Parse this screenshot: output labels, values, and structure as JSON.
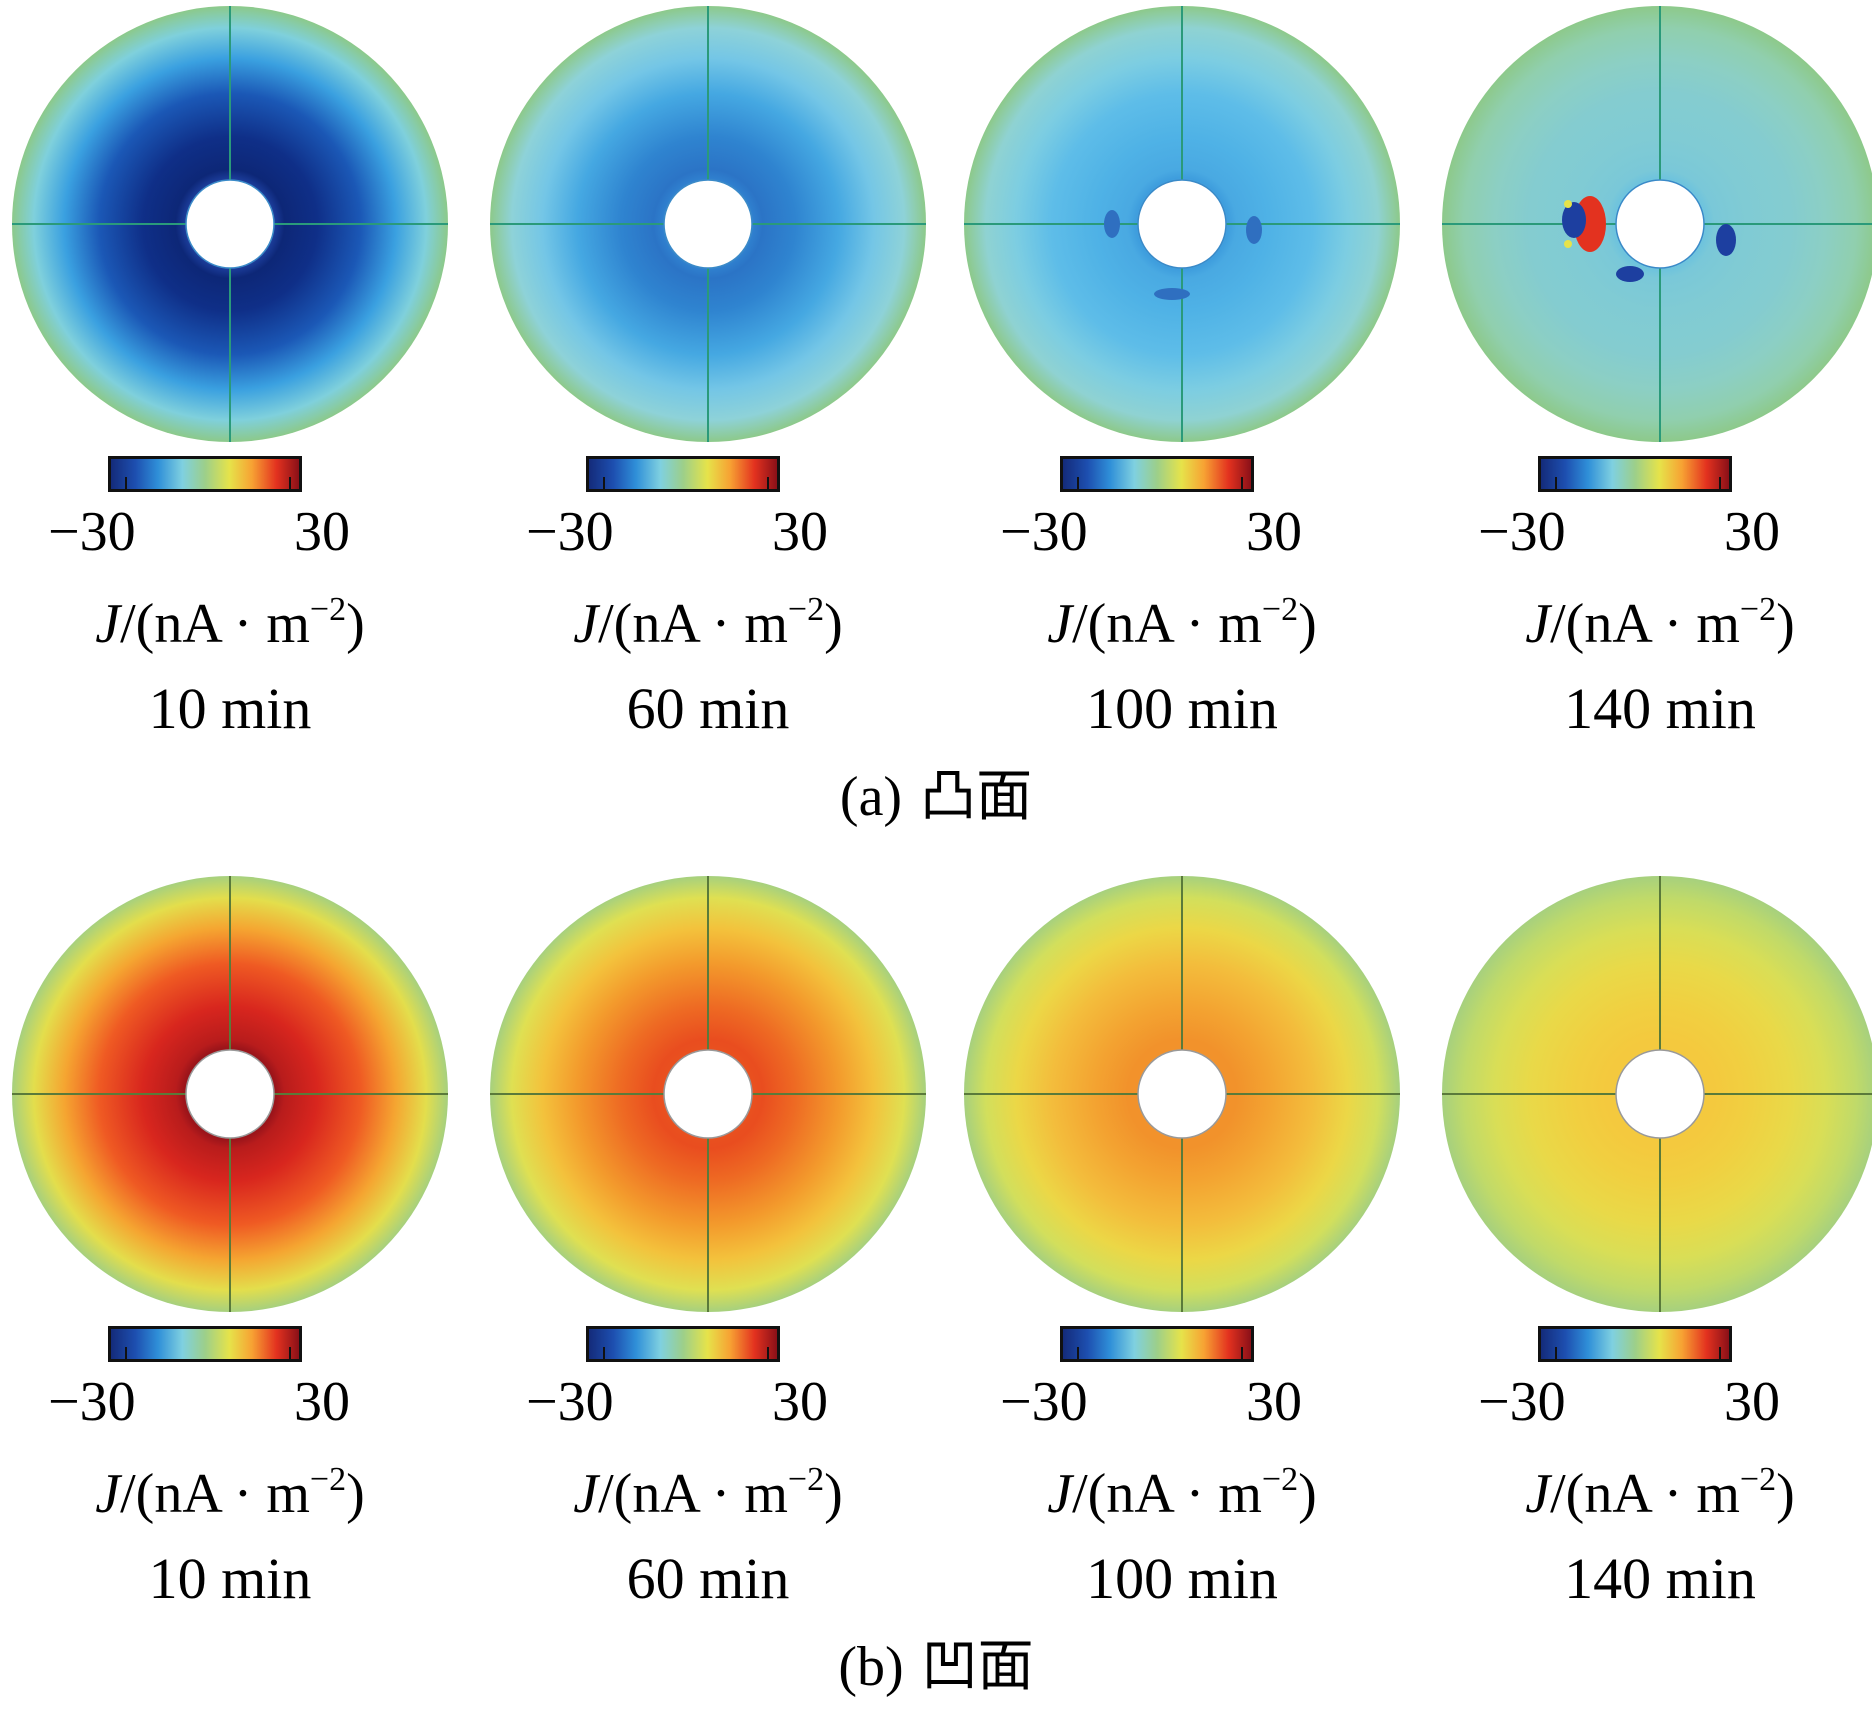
{
  "colormap": [
    "#142b7a",
    "#1d4fb0",
    "#2f8fd8",
    "#7fd0e0",
    "#9ccf8a",
    "#e6e34a",
    "#f7a233",
    "#e3321f",
    "#8a1018"
  ],
  "panels": [
    {
      "caption_label": "(a)",
      "caption_text": "凸面",
      "frames": [
        {
          "time": "10 min",
          "cb_min": "−30",
          "cb_max": "30",
          "unit_var": "J",
          "unit_body": "/(nA · m",
          "unit_sup": "−2",
          "unit_close": ")",
          "palette": [
            "#ffffff",
            "#1a3a96",
            "#0d2777",
            "#0f2f88",
            "#1b58b6",
            "#3aa0e0",
            "#7fd0dc",
            "#8cc98a"
          ]
        },
        {
          "time": "60 min",
          "cb_min": "−30",
          "cb_max": "30",
          "unit_var": "J",
          "unit_body": "/(nA · m",
          "unit_sup": "−2",
          "unit_close": ")",
          "palette": [
            "#ffffff",
            "#2f7fce",
            "#2b74c6",
            "#2f84d0",
            "#45a8e2",
            "#74c6e6",
            "#8ed2d8",
            "#8dc98a"
          ]
        },
        {
          "time": "100 min",
          "cb_min": "−30",
          "cb_max": "30",
          "unit_var": "J",
          "unit_body": "/(nA · m",
          "unit_sup": "−2",
          "unit_close": ")",
          "palette": [
            "#ffffff",
            "#3e9ddd",
            "#49a9e2",
            "#4fb2e6",
            "#5ebde8",
            "#7ccde2",
            "#8fd2d2",
            "#8dc98a"
          ]
        },
        {
          "time": "140 min",
          "cb_min": "−30",
          "cb_max": "30",
          "unit_var": "J",
          "unit_body": "/(nA · m",
          "unit_sup": "−2",
          "unit_close": ")",
          "palette": [
            "#ffffff",
            "#6ec3dd",
            "#7ac8d8",
            "#80cbd4",
            "#84ccd0",
            "#8ccfc4",
            "#90cfae",
            "#8dc98a"
          ]
        }
      ]
    },
    {
      "caption_label": "(b)",
      "caption_text": "凹面",
      "frames": [
        {
          "time": "10 min",
          "cb_min": "−30",
          "cb_max": "30",
          "unit_var": "J",
          "unit_body": "/(nA · m",
          "unit_sup": "−2",
          "unit_close": ")",
          "palette": [
            "#ffffff",
            "#9a141a",
            "#b81c1c",
            "#d8261e",
            "#ef5a23",
            "#f5a531",
            "#e3de4c",
            "#a6d07e"
          ]
        },
        {
          "time": "60 min",
          "cb_min": "−30",
          "cb_max": "30",
          "unit_var": "J",
          "unit_body": "/(nA · m",
          "unit_sup": "−2",
          "unit_close": ")",
          "palette": [
            "#ffffff",
            "#e9501f",
            "#e94d1f",
            "#ee6a23",
            "#f39a2c",
            "#f3c23c",
            "#dfe052",
            "#a6d07e"
          ]
        },
        {
          "time": "100 min",
          "cb_min": "−30",
          "cb_max": "30",
          "unit_var": "J",
          "unit_body": "/(nA · m",
          "unit_sup": "−2",
          "unit_close": ")",
          "palette": [
            "#ffffff",
            "#f2922b",
            "#f2922b",
            "#f3a331",
            "#f3bd3c",
            "#ecd746",
            "#d2df5c",
            "#a6d07e"
          ]
        },
        {
          "time": "140 min",
          "cb_min": "−30",
          "cb_max": "30",
          "unit_var": "J",
          "unit_body": "/(nA · m",
          "unit_sup": "−2",
          "unit_close": ")",
          "palette": [
            "#ffffff",
            "#f4c93e",
            "#f4c93e",
            "#f1cf40",
            "#e9d948",
            "#d9de56",
            "#c0da69",
            "#a6d07e"
          ]
        }
      ]
    }
  ]
}
